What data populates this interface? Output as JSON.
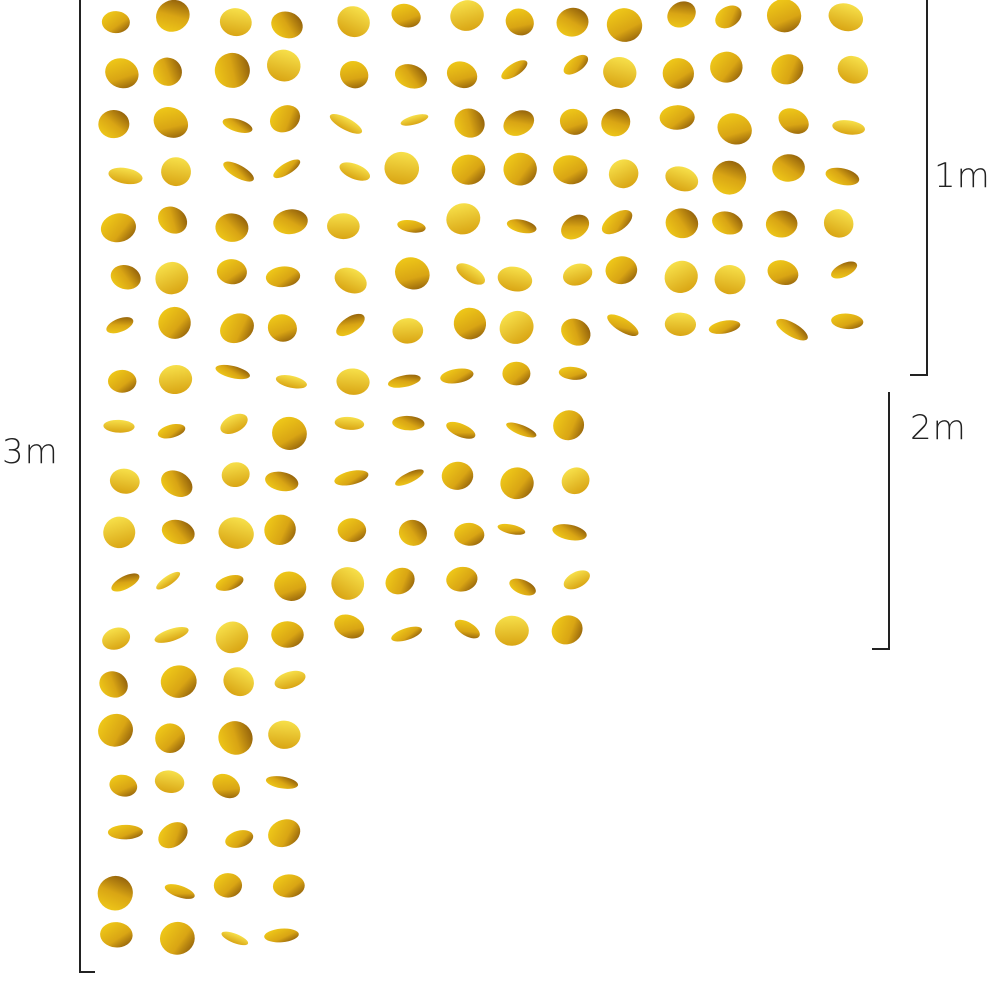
{
  "dimensions": {
    "total_length_label": "3m",
    "short_strands_label": "1m",
    "medium_strands_label": "2m"
  },
  "colors": {
    "gold_light": "#f5d21a",
    "gold_mid": "#d9a514",
    "gold_dark": "#7a4a08",
    "bracket": "#222222"
  }
}
